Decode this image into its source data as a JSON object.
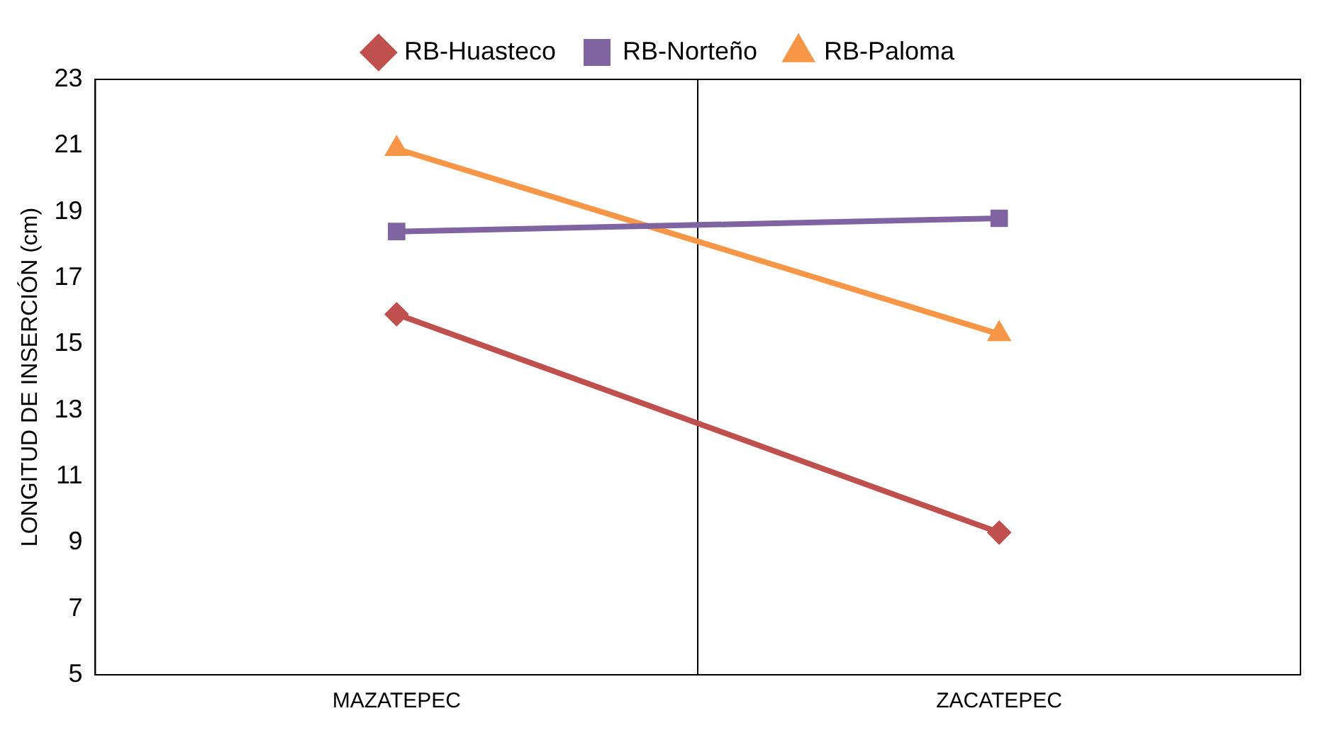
{
  "chart_data": {
    "type": "line",
    "ylabel": "LONGITUD DE INSERCIÓN (cm)",
    "categories": [
      "MAZATEPEC",
      "ZACATEPEC"
    ],
    "series": [
      {
        "name": "RB-Huasteco",
        "color": "#c0504d",
        "values": [
          15.9,
          9.3
        ],
        "marker": "diamond"
      },
      {
        "name": "RB-Norteño",
        "color": "#8064a2",
        "values": [
          18.4,
          18.8
        ],
        "marker": "square"
      },
      {
        "name": "RB-Paloma",
        "color": "#f79646",
        "values": [
          20.9,
          15.3
        ],
        "marker": "triangle"
      }
    ],
    "ylim": [
      5,
      23
    ],
    "yticks": [
      5,
      7,
      9,
      11,
      13,
      15,
      17,
      19,
      21,
      23
    ],
    "grid": "x",
    "legend": "top",
    "line_style": "solid"
  }
}
